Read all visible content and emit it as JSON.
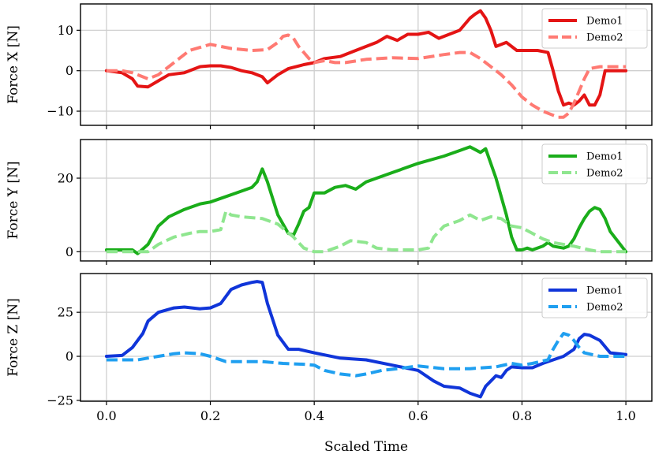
{
  "chart_data": [
    {
      "type": "line",
      "ylabel": "Force X [N]",
      "xlim": [
        -0.05,
        1.05
      ],
      "ylim": [
        -13.5,
        16.5
      ],
      "xticks": [
        0.0,
        0.2,
        0.4,
        0.6,
        0.8,
        1.0
      ],
      "xtick_labels": [
        "0.0",
        "0.2",
        "0.4",
        "0.6",
        "0.8",
        "1.0"
      ],
      "yticks": [
        -10,
        0,
        10
      ],
      "ytick_labels": [
        "−10",
        "0",
        "10"
      ],
      "grid": true,
      "legend": "top-right",
      "series": [
        {
          "name": "Demo1",
          "color": "#e41414",
          "dash": "solid",
          "x": [
            0,
            0.03,
            0.05,
            0.06,
            0.08,
            0.1,
            0.12,
            0.15,
            0.18,
            0.2,
            0.22,
            0.24,
            0.26,
            0.28,
            0.3,
            0.31,
            0.33,
            0.35,
            0.38,
            0.4,
            0.42,
            0.45,
            0.48,
            0.5,
            0.52,
            0.54,
            0.56,
            0.58,
            0.6,
            0.62,
            0.64,
            0.66,
            0.68,
            0.7,
            0.71,
            0.72,
            0.73,
            0.74,
            0.75,
            0.77,
            0.79,
            0.81,
            0.83,
            0.85,
            0.86,
            0.87,
            0.88,
            0.89,
            0.9,
            0.91,
            0.92,
            0.93,
            0.94,
            0.95,
            0.96,
            0.97,
            1.0
          ],
          "y": [
            0,
            -0.5,
            -2,
            -3.8,
            -4,
            -2.5,
            -1,
            -0.5,
            1,
            1.2,
            1.2,
            0.8,
            0,
            -0.5,
            -1.5,
            -3,
            -1,
            0.5,
            1.5,
            2,
            3,
            3.5,
            5,
            6,
            7,
            8.5,
            7.5,
            9,
            9,
            9.5,
            8,
            9,
            10,
            13,
            14,
            14.8,
            13,
            10,
            6,
            7,
            5,
            5,
            5,
            4.5,
            0,
            -5,
            -8.5,
            -8,
            -8.5,
            -7.5,
            -6,
            -8.5,
            -8.5,
            -6,
            0,
            0,
            0
          ]
        },
        {
          "name": "Demo2",
          "color": "#ff7a73",
          "dash": "dashed",
          "x": [
            0,
            0.03,
            0.05,
            0.08,
            0.1,
            0.13,
            0.16,
            0.2,
            0.24,
            0.28,
            0.31,
            0.33,
            0.34,
            0.35,
            0.36,
            0.37,
            0.39,
            0.4,
            0.42,
            0.44,
            0.46,
            0.5,
            0.55,
            0.6,
            0.65,
            0.68,
            0.7,
            0.72,
            0.74,
            0.76,
            0.78,
            0.8,
            0.82,
            0.84,
            0.86,
            0.87,
            0.88,
            0.89,
            0.9,
            0.91,
            0.92,
            0.93,
            0.95,
            0.97,
            1.0
          ],
          "y": [
            0,
            0,
            -0.5,
            -2,
            -1,
            2,
            5,
            6.5,
            5.5,
            5,
            5.2,
            7,
            8.5,
            8.8,
            8,
            6,
            3,
            2,
            2.5,
            2,
            2,
            2.8,
            3.2,
            3,
            4,
            4.5,
            4.5,
            3,
            1,
            -1,
            -3.5,
            -6.5,
            -8.5,
            -10,
            -11,
            -11.5,
            -11.5,
            -10.5,
            -8,
            -5,
            -2,
            0.5,
            1,
            1,
            1
          ]
        }
      ]
    },
    {
      "type": "line",
      "ylabel": "Force Y [N]",
      "xlim": [
        -0.05,
        1.05
      ],
      "ylim": [
        -2.5,
        30.5
      ],
      "xticks": [
        0.0,
        0.2,
        0.4,
        0.6,
        0.8,
        1.0
      ],
      "xtick_labels": [
        "0.0",
        "0.2",
        "0.4",
        "0.6",
        "0.8",
        "1.0"
      ],
      "yticks": [
        0,
        20
      ],
      "ytick_labels": [
        "0",
        "20"
      ],
      "grid": true,
      "legend": "top-right",
      "series": [
        {
          "name": "Demo1",
          "color": "#1aad1a",
          "dash": "solid",
          "x": [
            0,
            0.03,
            0.05,
            0.06,
            0.08,
            0.1,
            0.12,
            0.15,
            0.18,
            0.2,
            0.22,
            0.25,
            0.28,
            0.29,
            0.3,
            0.31,
            0.33,
            0.35,
            0.36,
            0.37,
            0.38,
            0.39,
            0.4,
            0.42,
            0.44,
            0.46,
            0.48,
            0.5,
            0.55,
            0.6,
            0.65,
            0.68,
            0.7,
            0.72,
            0.73,
            0.75,
            0.77,
            0.78,
            0.79,
            0.8,
            0.81,
            0.82,
            0.84,
            0.85,
            0.86,
            0.88,
            0.89,
            0.9,
            0.91,
            0.92,
            0.93,
            0.94,
            0.95,
            0.96,
            0.97,
            1.0
          ],
          "y": [
            0.5,
            0.5,
            0.5,
            -0.5,
            2,
            7,
            9.5,
            11.5,
            13,
            13.5,
            14.5,
            16,
            17.5,
            19,
            22.5,
            19,
            10,
            5,
            4.5,
            7.5,
            11,
            12,
            16,
            16,
            17.5,
            18,
            17,
            19,
            21.5,
            24,
            26,
            27.5,
            28.5,
            27,
            28,
            20,
            10,
            4,
            0.5,
            0.5,
            1,
            0.5,
            1.5,
            2.5,
            1.5,
            1,
            1.5,
            3.5,
            6.5,
            9,
            11,
            12,
            11.5,
            9,
            5.5,
            0
          ]
        },
        {
          "name": "Demo2",
          "color": "#8fe68f",
          "dash": "dashed",
          "x": [
            0,
            0.03,
            0.05,
            0.08,
            0.1,
            0.13,
            0.16,
            0.18,
            0.2,
            0.22,
            0.23,
            0.24,
            0.26,
            0.3,
            0.33,
            0.36,
            0.38,
            0.4,
            0.42,
            0.45,
            0.47,
            0.5,
            0.52,
            0.55,
            0.58,
            0.6,
            0.62,
            0.63,
            0.65,
            0.68,
            0.7,
            0.72,
            0.74,
            0.76,
            0.78,
            0.8,
            0.82,
            0.84,
            0.86,
            0.9,
            0.93,
            0.95,
            0.98,
            1.0
          ],
          "y": [
            0,
            0,
            0,
            0,
            2,
            4,
            5,
            5.5,
            5.5,
            6,
            11,
            10,
            9.5,
            9,
            7.5,
            4,
            1,
            0,
            0,
            1.5,
            3,
            2.5,
            1,
            0.5,
            0.5,
            0.5,
            1,
            4,
            7,
            8.5,
            10,
            8.5,
            9.5,
            9,
            7,
            6.5,
            5,
            3.5,
            2.5,
            1.5,
            0.5,
            0,
            0,
            0
          ]
        }
      ]
    },
    {
      "type": "line",
      "ylabel": "Force Z [N]",
      "xlabel": "Scaled Time",
      "xlim": [
        -0.05,
        1.05
      ],
      "ylim": [
        -25.5,
        47
      ],
      "xticks": [
        0.0,
        0.2,
        0.4,
        0.6,
        0.8,
        1.0
      ],
      "xtick_labels": [
        "0.0",
        "0.2",
        "0.4",
        "0.6",
        "0.8",
        "1.0"
      ],
      "yticks": [
        -25,
        0,
        25
      ],
      "ytick_labels": [
        "−25",
        "0",
        "25"
      ],
      "grid": true,
      "legend": "top-right",
      "series": [
        {
          "name": "Demo1",
          "color": "#1035d9",
          "dash": "solid",
          "x": [
            0,
            0.03,
            0.05,
            0.07,
            0.08,
            0.1,
            0.13,
            0.15,
            0.18,
            0.2,
            0.22,
            0.24,
            0.26,
            0.28,
            0.29,
            0.3,
            0.31,
            0.33,
            0.35,
            0.37,
            0.4,
            0.45,
            0.5,
            0.55,
            0.6,
            0.63,
            0.65,
            0.68,
            0.7,
            0.72,
            0.73,
            0.74,
            0.75,
            0.76,
            0.77,
            0.78,
            0.8,
            0.82,
            0.84,
            0.86,
            0.88,
            0.9,
            0.91,
            0.92,
            0.93,
            0.95,
            0.97,
            1.0
          ],
          "y": [
            0,
            0.5,
            5,
            13,
            20,
            25,
            27.5,
            28,
            27,
            27.5,
            30,
            38,
            40.5,
            42,
            42.5,
            42,
            30,
            12,
            4,
            4,
            2,
            -1,
            -2,
            -5,
            -8,
            -14,
            -17,
            -18,
            -21,
            -23,
            -17,
            -14,
            -11,
            -12,
            -8,
            -6,
            -6.5,
            -6.5,
            -4,
            -2,
            0,
            4,
            10,
            12.5,
            12,
            9,
            2,
            1
          ]
        },
        {
          "name": "Demo2",
          "color": "#1f9ff0",
          "dash": "dashed",
          "x": [
            0,
            0.03,
            0.06,
            0.1,
            0.13,
            0.15,
            0.18,
            0.2,
            0.23,
            0.26,
            0.3,
            0.34,
            0.38,
            0.4,
            0.42,
            0.45,
            0.48,
            0.5,
            0.53,
            0.56,
            0.6,
            0.65,
            0.7,
            0.75,
            0.78,
            0.8,
            0.82,
            0.85,
            0.86,
            0.87,
            0.88,
            0.89,
            0.9,
            0.91,
            0.92,
            0.95,
            1.0
          ],
          "y": [
            -2,
            -2,
            -2,
            0,
            1.5,
            2,
            1.5,
            0,
            -3,
            -3,
            -3,
            -4,
            -4.5,
            -5,
            -8,
            -10,
            -11,
            -10,
            -8,
            -7,
            -5.5,
            -7,
            -7,
            -6,
            -4,
            -5,
            -4,
            -2,
            4,
            9,
            13,
            12,
            9,
            5,
            2,
            0,
            0
          ]
        }
      ]
    }
  ]
}
